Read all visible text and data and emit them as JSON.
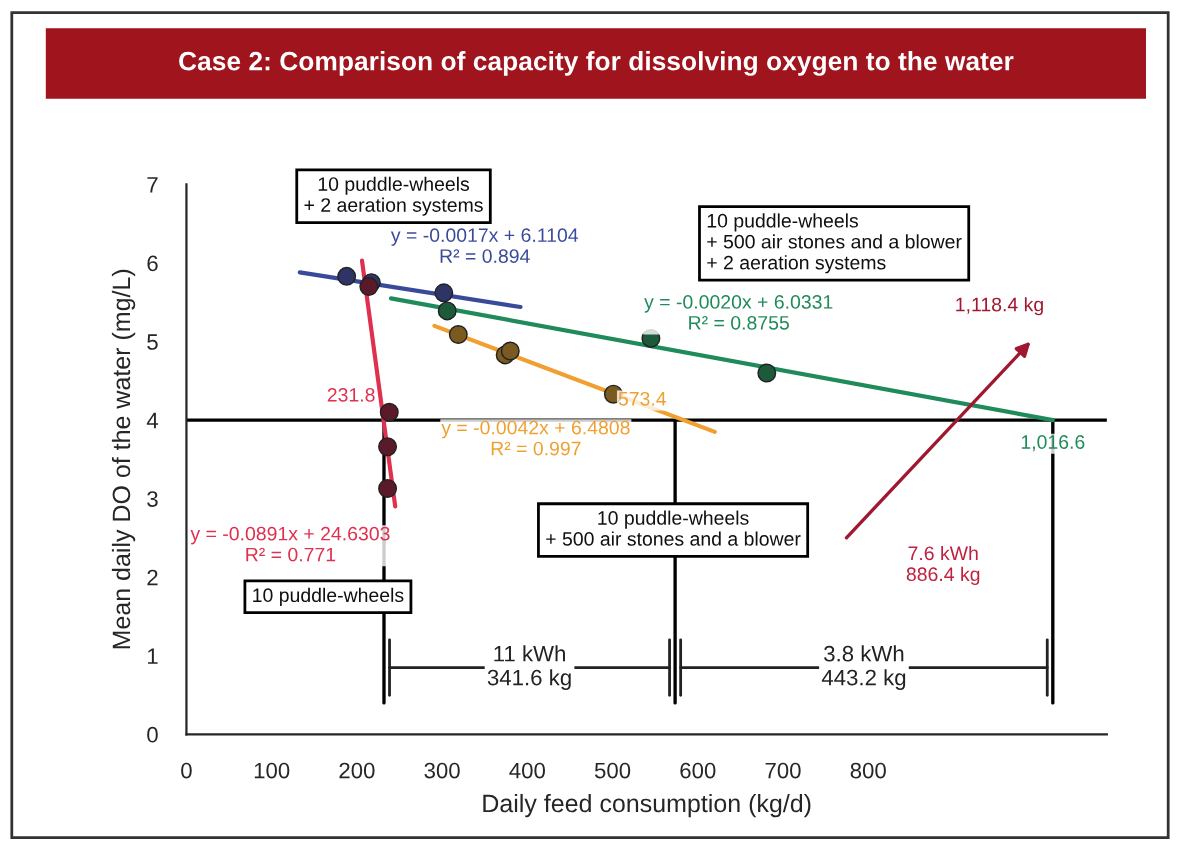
{
  "chart_data": {
    "type": "line",
    "title": "Case 2: Comparison of capacity for dissolving oxygen to the water",
    "xlabel": "Daily feed consumption (kg/d)",
    "ylabel": "Mean daily DO of the water (mg/L)",
    "xlim": [
      0,
      1080
    ],
    "xticks": [
      0,
      100,
      200,
      300,
      400,
      500,
      600,
      700,
      800
    ],
    "ylim": [
      0,
      7
    ],
    "yticks": [
      0,
      1,
      2,
      3,
      4,
      5,
      6,
      7
    ],
    "grid": false,
    "legend": false,
    "series": [
      {
        "color": "#3a4a9a",
        "x": [
          133,
          392
        ],
        "values": [
          5.88,
          5.44
        ]
      },
      {
        "type": "scatter",
        "marker": "circle",
        "color": "#2e3566",
        "x": [
          188,
          217,
          302
        ],
        "values": [
          5.83,
          5.75,
          5.62
        ]
      },
      {
        "color": "#1f8a5a",
        "x": [
          240,
          1016.6
        ],
        "values": [
          5.55,
          4.0
        ]
      },
      {
        "type": "scatter",
        "marker": "circle",
        "color": "#1d5a3a",
        "x": [
          306,
          545,
          681
        ],
        "values": [
          5.39,
          5.04,
          4.6
        ]
      },
      {
        "color": "#f0a030",
        "x": [
          291,
          620
        ],
        "values": [
          5.2,
          3.85
        ]
      },
      {
        "type": "scatter",
        "marker": "circle",
        "color": "#7a5a20",
        "x": [
          319,
          374,
          380,
          501
        ],
        "values": [
          5.09,
          4.83,
          4.88,
          4.33
        ]
      },
      {
        "color": "#e03050",
        "x": [
          206,
          245
        ],
        "values": [
          6.03,
          2.9
        ]
      },
      {
        "type": "scatter",
        "marker": "circle",
        "color": "#5a1a2a",
        "x": [
          214,
          238,
          236,
          236
        ],
        "values": [
          5.7,
          4.1,
          3.66,
          3.13
        ]
      }
    ],
    "ref_lines": [
      {
        "axis": "y",
        "value": 4,
        "color": "#000000"
      },
      {
        "axis": "x",
        "value": 231.8,
        "color": "#000000"
      },
      {
        "axis": "x",
        "value": 573.4,
        "color": "#000000"
      },
      {
        "axis": "x",
        "value": 1016.6,
        "color": "#000000"
      }
    ],
    "annotations": [
      "10 puddle-wheels\n+ 2 aeration systems",
      "10 puddle-wheels\n+ 500 air stones and a blower\n+ 2 aeration systems",
      "10 puddle-wheels\n+ 500 air stones and a blower",
      "10 puddle-wheels",
      "y = -0.0017x + 6.1104\nR² = 0.894",
      "y = -0.0020x + 6.0331\nR² = 0.8755",
      "y = -0.0042x + 6.4808\nR² = 0.997",
      "y = -0.0891x + 24.6303\nR² = 0.771",
      {
        "text": "231.8",
        "x": 231.8,
        "y": 4
      },
      {
        "text": "573.4",
        "x": 573.4,
        "y": 4
      },
      {
        "text": "1,016.6",
        "x": 1016.6,
        "y": 4
      },
      "1,118.4 kg",
      "7.6 kWh\n886.4 kg",
      "11 kWh\n341.6 kg",
      "3.8 kWh\n443.2 kg"
    ]
  }
}
